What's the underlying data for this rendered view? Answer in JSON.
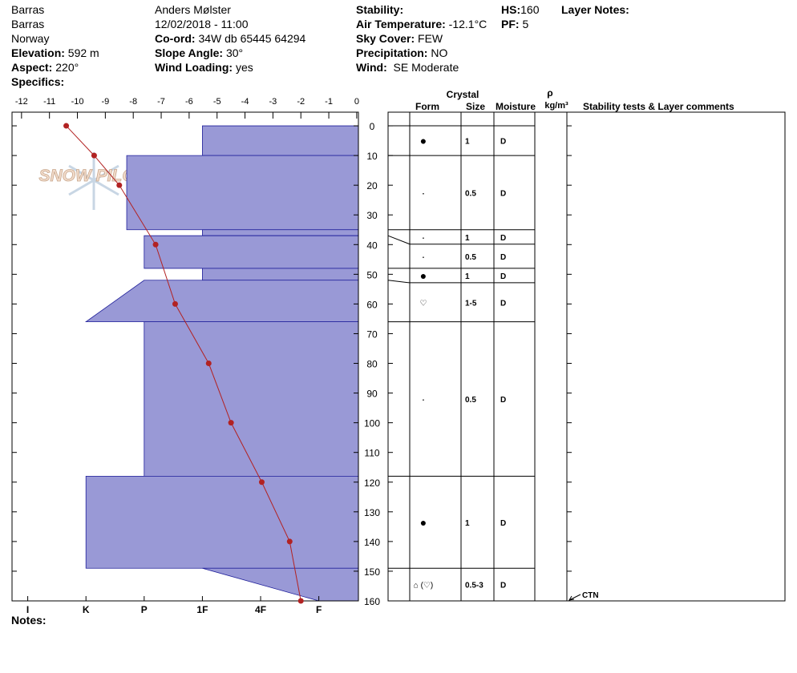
{
  "header": {
    "lines": [
      "Barras",
      "Barras",
      "Norway",
      "Anders Mølster",
      "12/02/2018 - 11:00"
    ],
    "fields": [
      {
        "label": "Elevation:",
        "value": "592 m"
      },
      {
        "label": "Aspect:",
        "value": "220°"
      },
      {
        "label": "Specifics:"
      },
      {
        "label": "Co-ord:",
        "value": "34W db 65445 64294"
      },
      {
        "label": "Slope Angle:",
        "value": "30°"
      },
      {
        "label": "Wind Loading:",
        "value": "yes"
      },
      {
        "label": "Stability:"
      },
      {
        "label": "Air Temperature:",
        "value": "-12.1°C"
      },
      {
        "label": "Sky Cover:",
        "value": "FEW"
      },
      {
        "label": "Precipitation:",
        "value": "NO"
      },
      {
        "label": "Wind:",
        "value": "SE Moderate"
      },
      {
        "label": "HS:",
        "value": 160
      },
      {
        "label": "PF:",
        "value": 5
      },
      {
        "label": "Layer Notes:"
      }
    ],
    "notes_label": "Notes:"
  },
  "logo": "SNOW PILOT",
  "chart_data": {
    "type": "snow-profile",
    "xlim": [
      -12.34,
      0.06
    ],
    "xticks": [
      -12,
      -11,
      -10,
      -9,
      -8,
      -7,
      -6,
      -5,
      -4,
      -3,
      -2,
      -1,
      0
    ],
    "ylim": [
      -4.6,
      160
    ],
    "yticks": [
      0,
      10,
      20,
      30,
      40,
      50,
      60,
      70,
      80,
      90,
      100,
      110,
      120,
      130,
      140,
      150,
      160
    ],
    "hlim": [
      6.27,
      0.32
    ],
    "hticks": [
      {
        "value": 6,
        "label": "I"
      },
      {
        "value": 5,
        "label": "K"
      },
      {
        "value": 4,
        "label": "P"
      },
      {
        "value": 3,
        "label": "1F"
      },
      {
        "value": 2,
        "label": "4F"
      },
      {
        "value": 1,
        "label": "F"
      }
    ],
    "temperature": {
      "color": "#b22222",
      "depths": [
        0,
        10,
        20,
        40,
        60,
        80,
        100,
        120,
        140,
        160
      ],
      "values": [
        -10.4,
        -9.4,
        -8.5,
        -7.2,
        -6.5,
        -5.3,
        -4.5,
        -3.4,
        -2.4,
        -2.0
      ]
    },
    "layer_color": "#9999d6",
    "layers": [
      {
        "top": 0,
        "bottom": 10,
        "hardness_top": 3,
        "hardness_bottom": 3,
        "form": "●",
        "size": "1",
        "moisture": "D"
      },
      {
        "top": 10,
        "bottom": 35,
        "hardness_top": 4.3,
        "hardness_bottom": 4.3,
        "form": "·",
        "size": "0.5",
        "moisture": "D"
      },
      {
        "top": 35,
        "bottom": 37,
        "hardness_top": 3,
        "hardness_bottom": 3,
        "form": "·",
        "size": "1",
        "moisture": "D"
      },
      {
        "top": 37,
        "bottom": 48,
        "hardness_top": 4,
        "hardness_bottom": 4,
        "form": "·",
        "size": "0.5",
        "moisture": "D"
      },
      {
        "top": 48,
        "bottom": 52,
        "hardness_top": 3,
        "hardness_bottom": 3,
        "form": "●",
        "size": "1",
        "moisture": "D"
      },
      {
        "top": 52,
        "bottom": 66,
        "hardness_top": 4,
        "hardness_bottom": 5,
        "form": "♡",
        "size": "1-5",
        "moisture": "D"
      },
      {
        "top": 66,
        "bottom": 118,
        "hardness_top": 4,
        "hardness_bottom": 4,
        "form": "·",
        "size": "0.5",
        "moisture": "D"
      },
      {
        "top": 118,
        "bottom": 149,
        "hardness_top": 5,
        "hardness_bottom": 5,
        "form": "●",
        "size": "1",
        "moisture": "D"
      },
      {
        "top": 149,
        "bottom": 160,
        "hardness_top": 3,
        "hardness_bottom": 1,
        "form": "⌂ (♡)",
        "size": "0.5-3",
        "moisture": "D"
      }
    ],
    "stability_tests": [
      {
        "depth": 160,
        "label": "CTN"
      }
    ],
    "table_headers": {
      "crystal": "Crystal",
      "form": "Form",
      "size": "Size",
      "moisture": "Moisture",
      "density": "ρ",
      "density_unit": "kg/m³",
      "comments": "Stability tests & Layer comments"
    }
  }
}
